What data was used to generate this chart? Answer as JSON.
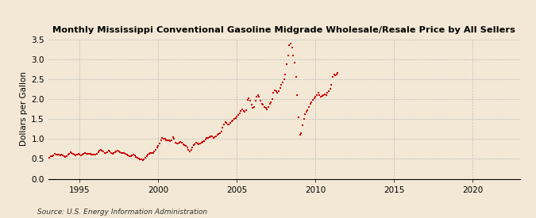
{
  "title": "Monthly Mississippi Conventional Gasoline Midgrade Wholesale/Resale Price by All Sellers",
  "ylabel": "Dollars per Gallon",
  "source": "Source: U.S. Energy Information Administration",
  "background_color": "#f2e8d5",
  "dot_color": "#cc0000",
  "xlim": [
    1993.0,
    2023.0
  ],
  "ylim": [
    0.0,
    3.5
  ],
  "yticks": [
    0.0,
    0.5,
    1.0,
    1.5,
    2.0,
    2.5,
    3.0,
    3.5
  ],
  "xticks": [
    1995,
    2000,
    2005,
    2010,
    2015,
    2020
  ],
  "data": [
    [
      1993.08,
      0.53
    ],
    [
      1993.17,
      0.56
    ],
    [
      1993.25,
      0.57
    ],
    [
      1993.33,
      0.59
    ],
    [
      1993.42,
      0.62
    ],
    [
      1993.5,
      0.61
    ],
    [
      1993.58,
      0.6
    ],
    [
      1993.67,
      0.6
    ],
    [
      1993.75,
      0.59
    ],
    [
      1993.83,
      0.6
    ],
    [
      1993.92,
      0.59
    ],
    [
      1994.0,
      0.56
    ],
    [
      1994.08,
      0.54
    ],
    [
      1994.17,
      0.57
    ],
    [
      1994.25,
      0.6
    ],
    [
      1994.33,
      0.63
    ],
    [
      1994.42,
      0.66
    ],
    [
      1994.5,
      0.65
    ],
    [
      1994.58,
      0.63
    ],
    [
      1994.67,
      0.6
    ],
    [
      1994.75,
      0.59
    ],
    [
      1994.83,
      0.61
    ],
    [
      1994.92,
      0.63
    ],
    [
      1995.0,
      0.6
    ],
    [
      1995.08,
      0.59
    ],
    [
      1995.17,
      0.6
    ],
    [
      1995.25,
      0.63
    ],
    [
      1995.33,
      0.65
    ],
    [
      1995.42,
      0.63
    ],
    [
      1995.5,
      0.62
    ],
    [
      1995.58,
      0.62
    ],
    [
      1995.67,
      0.62
    ],
    [
      1995.75,
      0.61
    ],
    [
      1995.83,
      0.6
    ],
    [
      1995.92,
      0.6
    ],
    [
      1996.0,
      0.6
    ],
    [
      1996.08,
      0.63
    ],
    [
      1996.17,
      0.66
    ],
    [
      1996.25,
      0.7
    ],
    [
      1996.33,
      0.73
    ],
    [
      1996.42,
      0.71
    ],
    [
      1996.5,
      0.68
    ],
    [
      1996.58,
      0.65
    ],
    [
      1996.67,
      0.64
    ],
    [
      1996.75,
      0.67
    ],
    [
      1996.83,
      0.7
    ],
    [
      1996.92,
      0.68
    ],
    [
      1997.0,
      0.65
    ],
    [
      1997.08,
      0.63
    ],
    [
      1997.17,
      0.64
    ],
    [
      1997.25,
      0.66
    ],
    [
      1997.33,
      0.68
    ],
    [
      1997.42,
      0.7
    ],
    [
      1997.5,
      0.69
    ],
    [
      1997.58,
      0.67
    ],
    [
      1997.67,
      0.65
    ],
    [
      1997.75,
      0.65
    ],
    [
      1997.83,
      0.65
    ],
    [
      1997.92,
      0.63
    ],
    [
      1998.0,
      0.61
    ],
    [
      1998.08,
      0.59
    ],
    [
      1998.17,
      0.57
    ],
    [
      1998.25,
      0.57
    ],
    [
      1998.33,
      0.59
    ],
    [
      1998.42,
      0.6
    ],
    [
      1998.5,
      0.58
    ],
    [
      1998.58,
      0.55
    ],
    [
      1998.67,
      0.52
    ],
    [
      1998.75,
      0.5
    ],
    [
      1998.83,
      0.49
    ],
    [
      1998.92,
      0.49
    ],
    [
      1999.0,
      0.47
    ],
    [
      1999.08,
      0.48
    ],
    [
      1999.17,
      0.52
    ],
    [
      1999.25,
      0.57
    ],
    [
      1999.33,
      0.6
    ],
    [
      1999.42,
      0.62
    ],
    [
      1999.5,
      0.64
    ],
    [
      1999.58,
      0.65
    ],
    [
      1999.67,
      0.65
    ],
    [
      1999.75,
      0.68
    ],
    [
      1999.83,
      0.72
    ],
    [
      1999.92,
      0.78
    ],
    [
      2000.0,
      0.82
    ],
    [
      2000.08,
      0.88
    ],
    [
      2000.17,
      0.97
    ],
    [
      2000.25,
      1.02
    ],
    [
      2000.33,
      1.01
    ],
    [
      2000.42,
      1.0
    ],
    [
      2000.5,
      0.97
    ],
    [
      2000.58,
      0.96
    ],
    [
      2000.67,
      0.97
    ],
    [
      2000.75,
      0.95
    ],
    [
      2000.83,
      0.97
    ],
    [
      2000.92,
      1.04
    ],
    [
      2001.0,
      1.0
    ],
    [
      2001.08,
      0.91
    ],
    [
      2001.17,
      0.88
    ],
    [
      2001.25,
      0.88
    ],
    [
      2001.33,
      0.9
    ],
    [
      2001.42,
      0.93
    ],
    [
      2001.5,
      0.91
    ],
    [
      2001.58,
      0.87
    ],
    [
      2001.67,
      0.84
    ],
    [
      2001.75,
      0.82
    ],
    [
      2001.83,
      0.79
    ],
    [
      2001.92,
      0.72
    ],
    [
      2002.0,
      0.68
    ],
    [
      2002.08,
      0.72
    ],
    [
      2002.17,
      0.79
    ],
    [
      2002.25,
      0.85
    ],
    [
      2002.33,
      0.87
    ],
    [
      2002.42,
      0.9
    ],
    [
      2002.5,
      0.89
    ],
    [
      2002.58,
      0.87
    ],
    [
      2002.67,
      0.88
    ],
    [
      2002.75,
      0.9
    ],
    [
      2002.83,
      0.92
    ],
    [
      2002.92,
      0.95
    ],
    [
      2003.0,
      0.98
    ],
    [
      2003.08,
      1.02
    ],
    [
      2003.17,
      1.03
    ],
    [
      2003.25,
      1.05
    ],
    [
      2003.33,
      1.07
    ],
    [
      2003.42,
      1.06
    ],
    [
      2003.5,
      1.03
    ],
    [
      2003.58,
      1.04
    ],
    [
      2003.67,
      1.07
    ],
    [
      2003.75,
      1.1
    ],
    [
      2003.83,
      1.12
    ],
    [
      2003.92,
      1.14
    ],
    [
      2004.0,
      1.19
    ],
    [
      2004.08,
      1.28
    ],
    [
      2004.17,
      1.37
    ],
    [
      2004.25,
      1.42
    ],
    [
      2004.33,
      1.4
    ],
    [
      2004.42,
      1.36
    ],
    [
      2004.5,
      1.37
    ],
    [
      2004.58,
      1.41
    ],
    [
      2004.67,
      1.44
    ],
    [
      2004.75,
      1.46
    ],
    [
      2004.83,
      1.5
    ],
    [
      2004.92,
      1.52
    ],
    [
      2005.0,
      1.56
    ],
    [
      2005.08,
      1.6
    ],
    [
      2005.17,
      1.65
    ],
    [
      2005.25,
      1.7
    ],
    [
      2005.33,
      1.75
    ],
    [
      2005.42,
      1.7
    ],
    [
      2005.5,
      1.68
    ],
    [
      2005.58,
      1.72
    ],
    [
      2005.67,
      1.98
    ],
    [
      2005.75,
      2.02
    ],
    [
      2005.83,
      1.95
    ],
    [
      2005.92,
      1.85
    ],
    [
      2006.0,
      1.78
    ],
    [
      2006.08,
      1.8
    ],
    [
      2006.17,
      1.95
    ],
    [
      2006.25,
      2.05
    ],
    [
      2006.33,
      2.1
    ],
    [
      2006.42,
      2.05
    ],
    [
      2006.5,
      1.95
    ],
    [
      2006.58,
      1.88
    ],
    [
      2006.67,
      1.85
    ],
    [
      2006.75,
      1.8
    ],
    [
      2006.83,
      1.78
    ],
    [
      2006.92,
      1.75
    ],
    [
      2007.0,
      1.8
    ],
    [
      2007.08,
      1.88
    ],
    [
      2007.17,
      1.92
    ],
    [
      2007.25,
      2.0
    ],
    [
      2007.33,
      2.15
    ],
    [
      2007.42,
      2.22
    ],
    [
      2007.5,
      2.2
    ],
    [
      2007.58,
      2.15
    ],
    [
      2007.67,
      2.2
    ],
    [
      2007.75,
      2.28
    ],
    [
      2007.83,
      2.35
    ],
    [
      2007.92,
      2.42
    ],
    [
      2008.0,
      2.5
    ],
    [
      2008.08,
      2.62
    ],
    [
      2008.17,
      2.88
    ],
    [
      2008.25,
      3.1
    ],
    [
      2008.33,
      3.35
    ],
    [
      2008.42,
      3.4
    ],
    [
      2008.5,
      3.3
    ],
    [
      2008.58,
      3.1
    ],
    [
      2008.67,
      2.92
    ],
    [
      2008.75,
      2.55
    ],
    [
      2008.83,
      2.1
    ],
    [
      2008.92,
      1.55
    ],
    [
      2009.0,
      1.1
    ],
    [
      2009.08,
      1.15
    ],
    [
      2009.17,
      1.35
    ],
    [
      2009.25,
      1.5
    ],
    [
      2009.33,
      1.62
    ],
    [
      2009.42,
      1.68
    ],
    [
      2009.5,
      1.72
    ],
    [
      2009.58,
      1.8
    ],
    [
      2009.67,
      1.88
    ],
    [
      2009.75,
      1.92
    ],
    [
      2009.83,
      1.98
    ],
    [
      2009.92,
      2.02
    ],
    [
      2010.0,
      2.05
    ],
    [
      2010.08,
      2.1
    ],
    [
      2010.17,
      2.15
    ],
    [
      2010.25,
      2.1
    ],
    [
      2010.33,
      2.05
    ],
    [
      2010.42,
      2.08
    ],
    [
      2010.5,
      2.1
    ],
    [
      2010.58,
      2.12
    ],
    [
      2010.67,
      2.1
    ],
    [
      2010.75,
      2.15
    ],
    [
      2010.83,
      2.2
    ],
    [
      2010.92,
      2.25
    ],
    [
      2011.0,
      2.35
    ],
    [
      2011.08,
      2.55
    ],
    [
      2011.17,
      2.62
    ],
    [
      2011.25,
      2.6
    ],
    [
      2011.33,
      2.62
    ],
    [
      2011.42,
      2.65
    ]
  ]
}
